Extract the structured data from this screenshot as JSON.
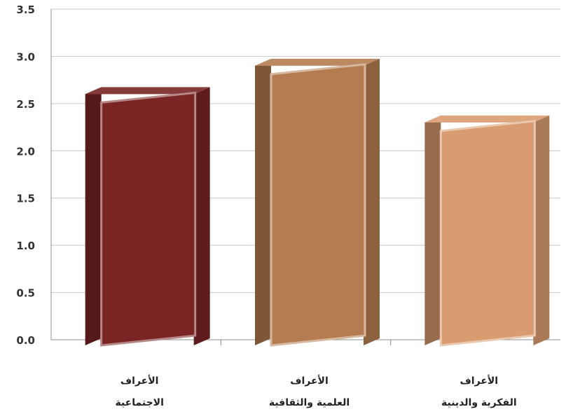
{
  "chart_data": {
    "type": "bar",
    "style": "3d",
    "categories": [
      [
        "الأعراف",
        "الاجتماعية"
      ],
      [
        "الأعراف",
        "العلمية والثقافية"
      ],
      [
        "الأعراف",
        "الفكرية والدينية"
      ]
    ],
    "values": [
      2.6,
      2.9,
      2.3
    ],
    "ylim": [
      0,
      3.5
    ],
    "yticks": [
      "0.0",
      "0.5",
      "1.0",
      "1.5",
      "2.0",
      "2.5",
      "3.0",
      "3.5"
    ],
    "grid": true,
    "legend": "none",
    "colors": [
      "#7a2424",
      "#b47c50",
      "#d99c70"
    ]
  }
}
